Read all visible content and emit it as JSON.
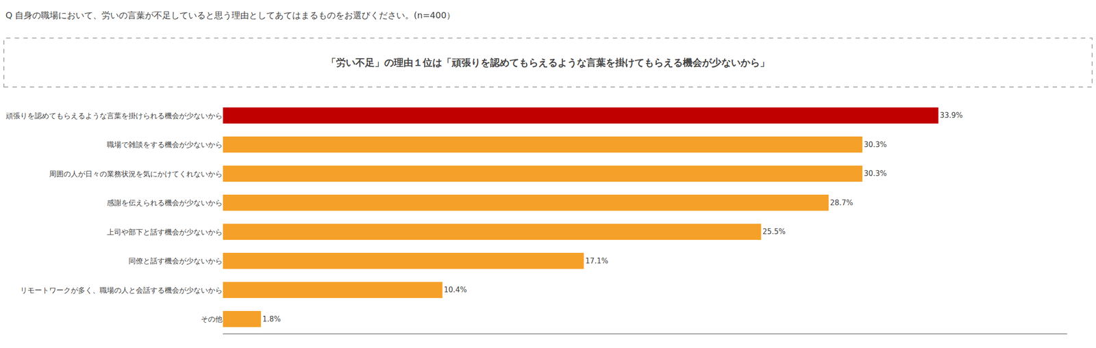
{
  "chart_data": {
    "type": "bar",
    "orientation": "horizontal",
    "title": "Q 自身の職場において、労いの言葉が不足していると思う理由としてあてはまるものをお選びください。(n=400）",
    "subtitle": "「労い不足」の理由１位は「頑張りを認めてもらえるような言葉を掛けてもらえる機会が少ないから」",
    "categories": [
      "頑張りを認めてもらえるような言葉を掛けられる機会が少ないから",
      "職場で雑談をする機会が少ないから",
      "周囲の人が日々の業務状況を気にかけてくれないから",
      "感謝を伝えられる機会が少ないから",
      "上司や部下と話す機会が少ないから",
      "同僚と話す機会が少ないから",
      "リモートワークが多く、職場の人と会話する機会が少ないから",
      "その他"
    ],
    "values": [
      33.9,
      30.3,
      30.3,
      28.7,
      25.5,
      17.1,
      10.4,
      1.8
    ],
    "value_labels": [
      "33.9%",
      "30.3%",
      "30.3%",
      "28.7%",
      "25.5%",
      "17.1%",
      "10.4%",
      "1.8%"
    ],
    "colors": [
      "#c00000",
      "#f5a028",
      "#f5a028",
      "#f5a028",
      "#f5a028",
      "#f5a028",
      "#f5a028",
      "#f5a028"
    ],
    "xlim": [
      0,
      40
    ],
    "data_labels": true,
    "tick_labels": "y",
    "grid": false
  }
}
